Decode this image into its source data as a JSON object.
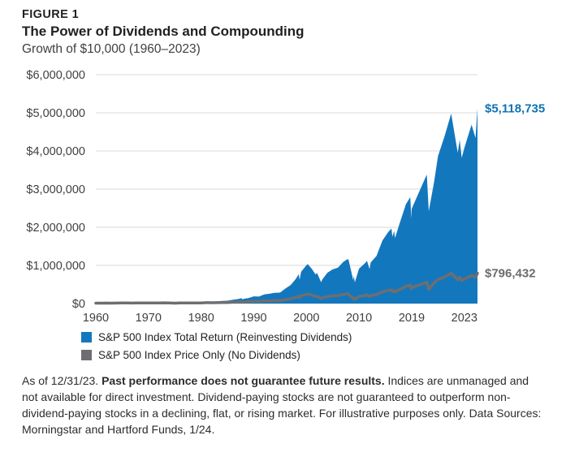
{
  "header": {
    "figure_label": "FIGURE 1",
    "title": "The Power of Dividends and Compounding",
    "subtitle": "Growth of $10,000 (1960–2023)"
  },
  "colors": {
    "total_return_blue": "#1377be",
    "price_only_gray": "#6d6e71",
    "grid": "#d9d9d9",
    "axis_text": "#404041",
    "annotation_blue": "#1172b2",
    "annotation_gray": "#6a6b6d"
  },
  "legend": {
    "items": [
      {
        "label": "S&P 500 Index Total Return (Reinvesting Dividends)",
        "color": "#1377be"
      },
      {
        "label": "S&P 500 Index Price Only (No Dividends)",
        "color": "#6d6e71"
      }
    ]
  },
  "footer": {
    "parts": [
      {
        "text": "As of 12/31/23. ",
        "bold": false
      },
      {
        "text": "Past performance does not guarantee future results.",
        "bold": true
      },
      {
        "text": " Indices are unmanaged and not available for direct investment. Dividend-paying stocks are not guaranteed to outperform non-dividend-paying stocks in a declining, flat, or rising market. For illustrative purposes only. Data Sources: Morningstar and Hartford Funds, 1/24.",
        "bold": false
      }
    ]
  },
  "chart_data": {
    "type": "area",
    "title": "The Power of Dividends and Compounding",
    "subtitle": "Growth of $10,000 (1960–2023)",
    "ylim": [
      0,
      6000000
    ],
    "ytick_values": [
      0,
      1000000,
      2000000,
      3000000,
      4000000,
      5000000,
      6000000
    ],
    "ytick_labels": [
      "$0",
      "$1,000,000",
      "$2,000,000",
      "$3,000,000",
      "$4,000,000",
      "$5,000,000",
      "$6,000,000"
    ],
    "x_axis": {
      "labels": [
        "1960",
        "1970",
        "1980",
        "1990",
        "2000",
        "2010",
        "2019",
        "2023"
      ],
      "label_years": [
        1960,
        1970,
        1980,
        1990,
        2000,
        2010,
        2019,
        2023
      ]
    },
    "grid": "horizontal",
    "legend_position": "bottom-left",
    "x": [
      1960,
      1961,
      1962,
      1963,
      1964,
      1965,
      1966,
      1967,
      1968,
      1969,
      1970,
      1971,
      1972,
      1973,
      1974,
      1974.8,
      1975,
      1976,
      1977,
      1978,
      1979,
      1980,
      1981,
      1982,
      1983,
      1984,
      1985,
      1986,
      1987,
      1987.7,
      1987.9,
      1988,
      1989,
      1990,
      1991,
      1992,
      1993,
      1994,
      1995,
      1996,
      1997,
      1998,
      1998.55,
      1998.7,
      1999,
      2000,
      2000.25,
      2001,
      2001.75,
      2002,
      2002.8,
      2003,
      2004,
      2005,
      2006,
      2007,
      2007.8,
      2008,
      2008.9,
      2009,
      2009.2,
      2010,
      2011,
      2011.35,
      2011.8,
      2012,
      2013,
      2014,
      2015,
      2015.55,
      2015.7,
      2016,
      2016.15,
      2017,
      2018,
      2018.75,
      2018.95,
      2019,
      2020,
      2020.15,
      2020.3,
      2020.7,
      2021,
      2021.5,
      2022,
      2022.5,
      2022.65,
      2022.8,
      2023,
      2023.55,
      2023.85,
      2024
    ],
    "series": [
      {
        "name": "S&P 500 Index Total Return (Reinvesting Dividends)",
        "style": "area",
        "color": "#1377be",
        "end_value": 5118735,
        "end_label": "$5,118,735",
        "values": [
          10000,
          10050,
          12753,
          11644,
          14299,
          16658,
          18740,
          16847,
          20890,
          23209,
          21236,
          22086,
          25244,
          30040,
          25624,
          16600,
          18834,
          25840,
          31990,
          29687,
          31646,
          37469,
          49609,
          47178,
          57321,
          70276,
          74703,
          98384,
          116782,
          141000,
          103000,
          122971,
          143384,
          188837,
          182983,
          238792,
          256940,
          282891,
          286569,
          394319,
          485012,
          647006,
          770000,
          620000,
          832050,
          1006780,
          1035000,
          915163,
          760000,
          806259,
          560000,
          628076,
          808334,
          896442,
          940368,
          1088946,
          1165000,
          1148838,
          610000,
          723768,
          555000,
          915566,
          1053816,
          1120000,
          905000,
          1075946,
          1248097,
          1652480,
          1878870,
          1965000,
          1750000,
          1905174,
          1720000,
          2133795,
          2598962,
          2790000,
          2230000,
          2484608,
          3267259,
          3380000,
          2420000,
          3180000,
          3868435,
          4390000,
          4978675,
          3950000,
          4290000,
          3820000,
          4077531,
          4690000,
          4340000,
          5118735
        ]
      },
      {
        "name": "S&P 500 Index Price Only (No Dividends)",
        "style": "line",
        "color": "#6d6e71",
        "end_value": 796432,
        "end_label": "$796,432",
        "values": [
          10000,
          9700,
          11944,
          10533,
          12523,
          14147,
          15429,
          13409,
          16103,
          17337,
          15367,
          15382,
          17041,
          19706,
          16284,
          10800,
          11445,
          15055,
          17938,
          15874,
          16043,
          18018,
          22662,
          20457,
          23477,
          27531,
          27917,
          35269,
          40425,
          47000,
          34000,
          41245,
          46360,
          58994,
          55125,
          69626,
          72734,
          77865,
          76667,
          102818,
          123652,
          161995,
          190000,
          152000,
          205197,
          245264,
          250000,
          220395,
          185000,
          191650,
          130000,
          146866,
          185614,
          202307,
          208378,
          236757,
          258000,
          245114,
          124000,
          150777,
          113000,
          186145,
          209939,
          227000,
          183000,
          209932,
          238074,
          308548,
          343694,
          356000,
          312000,
          341197,
          305000,
          373731,
          446304,
          489000,
          390000,
          418468,
          539316,
          563000,
          373000,
          540000,
          627010,
          700000,
          795639,
          625000,
          685000,
          597000,
          640938,
          735000,
          685000,
          796432
        ]
      }
    ]
  }
}
